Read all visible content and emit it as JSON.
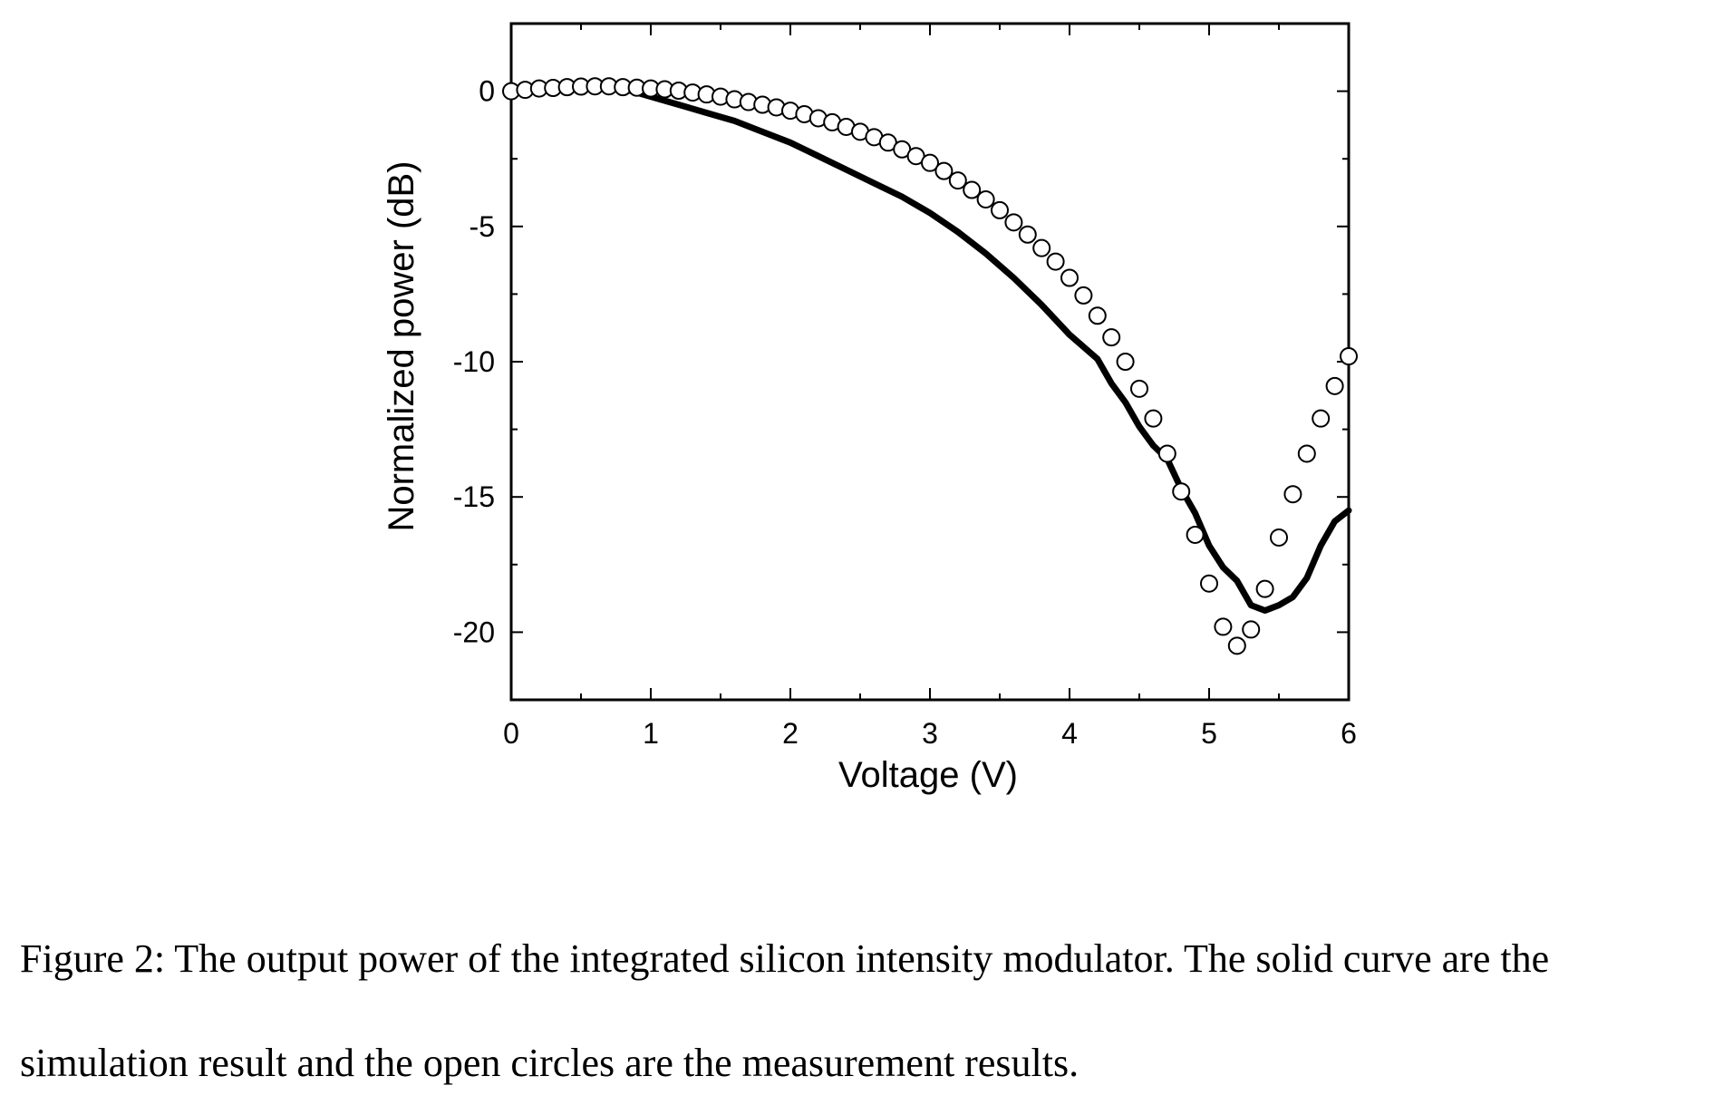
{
  "chart_data": {
    "type": "line",
    "xlabel": "Voltage (V)",
    "ylabel": "Normalized power (dB)",
    "xlim": [
      0,
      6
    ],
    "ylim": [
      -22.5,
      2.5
    ],
    "xticks": [
      "0",
      "1",
      "2",
      "3",
      "4",
      "5",
      "6"
    ],
    "yticks": [
      "0",
      "-5",
      "-10",
      "-15",
      "-20"
    ],
    "grid": false,
    "legend": "none",
    "series": [
      {
        "style": "solid-line",
        "color": "#000000",
        "x": [
          0,
          0.5,
          0.8,
          1.0,
          1.2,
          1.4,
          1.6,
          1.8,
          2.0,
          2.2,
          2.4,
          2.6,
          2.8,
          3.0,
          3.2,
          3.4,
          3.6,
          3.8,
          4.0,
          4.2,
          4.3,
          4.4,
          4.5,
          4.6,
          4.7,
          4.8,
          4.9,
          5.0,
          5.1,
          5.2,
          5.3,
          5.4,
          5.5,
          5.6,
          5.7,
          5.8,
          5.9,
          6.0
        ],
        "values": [
          0.1,
          0.2,
          0.1,
          -0.2,
          -0.5,
          -0.8,
          -1.1,
          -1.5,
          -1.9,
          -2.4,
          -2.9,
          -3.4,
          -3.9,
          -4.5,
          -5.2,
          -6.0,
          -6.9,
          -7.9,
          -9.0,
          -9.9,
          -10.8,
          -11.5,
          -12.4,
          -13.1,
          -13.6,
          -14.7,
          -15.6,
          -16.8,
          -17.6,
          -18.1,
          -19.0,
          -19.2,
          -19.0,
          -18.7,
          -18.0,
          -16.8,
          -15.9,
          -15.5
        ]
      },
      {
        "style": "open-circles",
        "color": "#000000",
        "x": [
          0,
          0.1,
          0.2,
          0.3,
          0.4,
          0.5,
          0.6,
          0.7,
          0.8,
          0.9,
          1.0,
          1.1,
          1.2,
          1.3,
          1.4,
          1.5,
          1.6,
          1.7,
          1.8,
          1.9,
          2.0,
          2.1,
          2.2,
          2.3,
          2.4,
          2.5,
          2.6,
          2.7,
          2.8,
          2.9,
          3.0,
          3.1,
          3.2,
          3.3,
          3.4,
          3.5,
          3.6,
          3.7,
          3.8,
          3.9,
          4.0,
          4.1,
          4.2,
          4.3,
          4.4,
          4.5,
          4.6,
          4.7,
          4.8,
          4.9,
          5.0,
          5.1,
          5.2,
          5.3,
          5.4,
          5.5,
          5.6,
          5.7,
          5.8,
          5.9,
          6.0
        ],
        "values": [
          0.0,
          0.05,
          0.1,
          0.12,
          0.15,
          0.17,
          0.18,
          0.18,
          0.15,
          0.13,
          0.1,
          0.07,
          0.02,
          -0.05,
          -0.12,
          -0.2,
          -0.3,
          -0.4,
          -0.5,
          -0.6,
          -0.72,
          -0.85,
          -1.0,
          -1.15,
          -1.32,
          -1.5,
          -1.7,
          -1.9,
          -2.15,
          -2.4,
          -2.65,
          -2.95,
          -3.3,
          -3.65,
          -4.0,
          -4.4,
          -4.85,
          -5.3,
          -5.8,
          -6.3,
          -6.9,
          -7.55,
          -8.3,
          -9.1,
          -10.0,
          -11.0,
          -12.1,
          -13.4,
          -14.8,
          -16.4,
          -18.2,
          -19.8,
          -20.5,
          -19.9,
          -18.4,
          -16.5,
          -14.9,
          -13.4,
          -12.1,
          -10.9,
          -9.8
        ]
      }
    ]
  },
  "caption": {
    "line1": "Figure 2: The output power of the integrated silicon intensity modulator. The solid curve are the",
    "line2": "simulation result and the open circles are the measurement results."
  }
}
